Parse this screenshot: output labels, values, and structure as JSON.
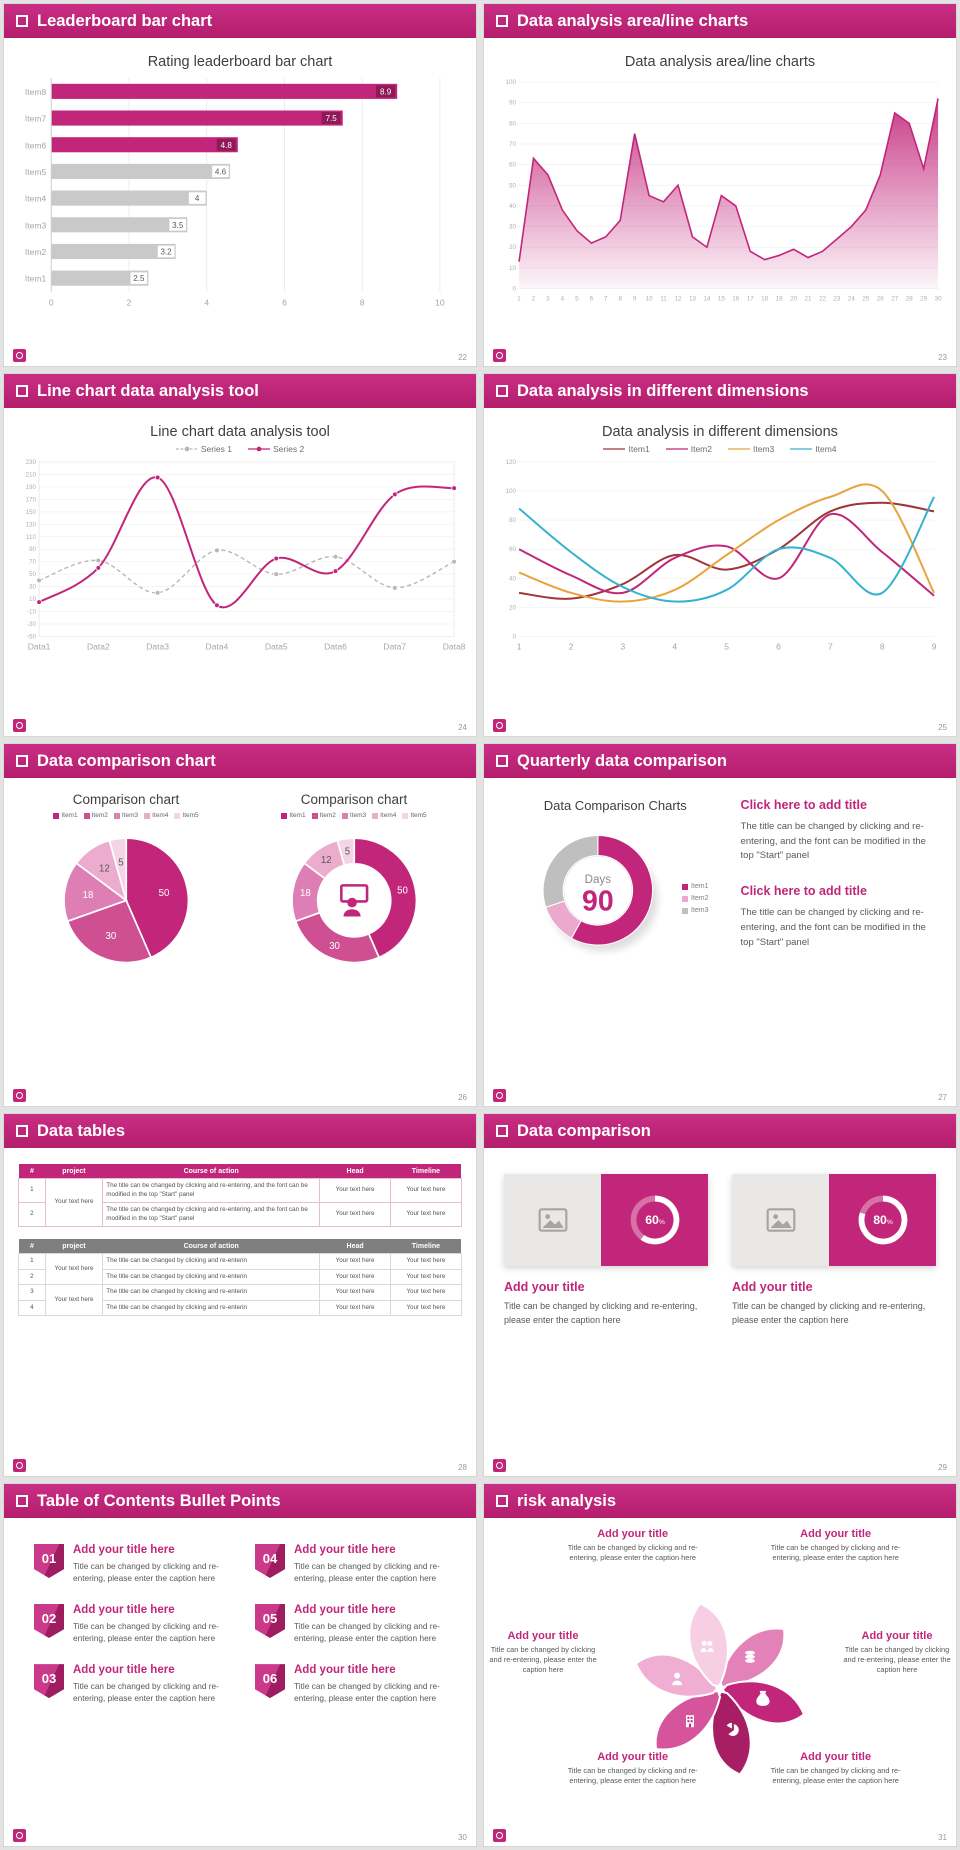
{
  "theme": {
    "accent": "#c2267a",
    "accent_dark": "#8f1a58",
    "gray_bar": "#c9c9c9"
  },
  "slides": [
    {
      "id": "leaderboard",
      "title": "Leaderboard bar chart",
      "page": "22",
      "type": "barh",
      "chart": {
        "type": "bar",
        "title": "Rating leaderboard bar chart",
        "categories": [
          "Item1",
          "Item2",
          "Item3",
          "Item4",
          "Item5",
          "Item6",
          "Item7",
          "Item8"
        ],
        "values": [
          2.5,
          3.2,
          3.5,
          4,
          4.6,
          4.8,
          7.5,
          8.9
        ],
        "highlight_from": 5,
        "xticks": [
          0,
          2,
          4,
          6,
          8,
          10
        ],
        "xlim": [
          0,
          10
        ]
      }
    },
    {
      "id": "arealine",
      "title": "Data analysis area/line charts",
      "page": "23",
      "type": "area",
      "chart": {
        "type": "area",
        "title": "Data analysis area/line charts",
        "x_labels": [
          "1",
          "2",
          "3",
          "4",
          "5",
          "6",
          "7",
          "8",
          "9",
          "10",
          "11",
          "12",
          "13",
          "14",
          "15",
          "16",
          "17",
          "18",
          "19",
          "20",
          "21",
          "22",
          "23",
          "24",
          "25",
          "26",
          "27",
          "28",
          "29",
          "30"
        ],
        "values": [
          13,
          63,
          55,
          38,
          28,
          22,
          25,
          33,
          75,
          45,
          42,
          50,
          25,
          20,
          45,
          40,
          18,
          14,
          16,
          19,
          15,
          18,
          24,
          30,
          38,
          55,
          85,
          80,
          58,
          92
        ],
        "yticks": [
          0,
          10,
          20,
          30,
          40,
          50,
          60,
          70,
          80,
          90,
          100
        ],
        "ylim": [
          0,
          100
        ]
      }
    },
    {
      "id": "linetool",
      "title": "Line chart data analysis tool",
      "page": "24",
      "type": "line",
      "chart": {
        "type": "line",
        "title": "Line chart data analysis tool",
        "x_labels": [
          "Data1",
          "Data2",
          "Data3",
          "Data4",
          "Data5",
          "Data6",
          "Data7",
          "Data8"
        ],
        "yticks": [
          230,
          210,
          190,
          170,
          150,
          130,
          110,
          90,
          70,
          50,
          30,
          10,
          -10,
          -30,
          -50
        ],
        "ylim": [
          -50,
          230
        ],
        "markers": true,
        "legend_dot": true,
        "frame": true,
        "series": [
          {
            "name": "Series 1",
            "color": "#b7b7b7",
            "dash": true,
            "values": [
              40,
              72,
              20,
              88,
              50,
              78,
              28,
              70
            ]
          },
          {
            "name": "Series 2",
            "color": "#c2267a",
            "dash": false,
            "values": [
              5,
              60,
              205,
              0,
              75,
              55,
              178,
              188
            ]
          }
        ]
      }
    },
    {
      "id": "dimensions",
      "title": "Data analysis in different dimensions",
      "page": "25",
      "type": "line",
      "chart": {
        "type": "line",
        "title": "Data analysis in different dimensions",
        "x_labels": [
          "1",
          "2",
          "3",
          "4",
          "5",
          "6",
          "7",
          "8",
          "9"
        ],
        "yticks": [
          0,
          20,
          40,
          60,
          80,
          100,
          120
        ],
        "ylim": [
          0,
          120
        ],
        "markers": false,
        "legend_dot": false,
        "frame": false,
        "series": [
          {
            "name": "Item1",
            "color": "#a0353a",
            "dash": false,
            "values": [
              30,
              26,
              36,
              56,
              46,
              60,
              86,
              92,
              86
            ]
          },
          {
            "name": "Item2",
            "color": "#c2267a",
            "dash": false,
            "values": [
              60,
              42,
              30,
              54,
              62,
              40,
              84,
              58,
              28
            ]
          },
          {
            "name": "Item3",
            "color": "#e8a33d",
            "dash": false,
            "values": [
              44,
              30,
              24,
              32,
              56,
              80,
              96,
              100,
              30
            ]
          },
          {
            "name": "Item4",
            "color": "#35b3ce",
            "dash": false,
            "values": [
              88,
              58,
              34,
              24,
              32,
              60,
              54,
              30,
              96
            ]
          }
        ]
      }
    },
    {
      "id": "comparison-pies",
      "title": "Data comparison chart",
      "page": "26",
      "type": "pies",
      "panels": [
        {
          "title": "Comparison chart",
          "style": "pie",
          "legend": [
            "Item1",
            "Item2",
            "Item3",
            "Item4",
            "Item5"
          ],
          "values": [
            50,
            30,
            18,
            12,
            5
          ],
          "colors": [
            "#c2267a",
            "#ce4f92",
            "#dd7fb4",
            "#ecacce",
            "#f6d4e7"
          ]
        },
        {
          "title": "Comparison chart",
          "style": "donut",
          "legend": [
            "Item1",
            "Item2",
            "Item3",
            "Item4",
            "Item5"
          ],
          "values": [
            50,
            30,
            18,
            12,
            5
          ],
          "colors": [
            "#c2267a",
            "#ce4f92",
            "#dd7fb4",
            "#ecacce",
            "#f6d4e7"
          ]
        }
      ]
    },
    {
      "id": "quarterly",
      "title": "Quarterly data comparison",
      "page": "27",
      "type": "gauge6",
      "left": {
        "title": "Data Comparison Charts",
        "center_label": "Days",
        "center_value": "90",
        "segments": [
          58,
          12,
          30
        ],
        "segment_colors": [
          "#c2267a",
          "#eba9cd",
          "#bfbfbf"
        ],
        "legend": [
          {
            "label": "Item1",
            "color": "#c2267a"
          },
          {
            "label": "Item2",
            "color": "#eba9cd"
          },
          {
            "label": "Item3",
            "color": "#bfbfbf"
          }
        ]
      },
      "blocks": [
        {
          "heading": "Click here to add title",
          "body": "The title can be changed by clicking and re-entering, and the font can be modified in the top \"Start\" panel"
        },
        {
          "heading": "Click here to add title",
          "body": "The title can be changed by clicking and re-entering, and the font can be modified in the top \"Start\" panel"
        }
      ]
    },
    {
      "id": "tables",
      "title": "Data tables",
      "page": "28",
      "type": "tables",
      "tables": [
        {
          "style": "pink",
          "columns": [
            "#",
            "project",
            "Course of action",
            "Head",
            "Timeline"
          ],
          "rows": [
            [
              "1",
              "Your text here",
              "The title can be changed by clicking and re-entering, and the font can be modified in the top \"Start\" panel",
              "Your text here",
              "Your text here"
            ],
            [
              "2",
              null,
              "The title can be changed by clicking and re-entering, and the font can be modified in the top \"Start\" panel",
              "Your text here",
              "Your text here"
            ]
          ]
        },
        {
          "style": "gray",
          "columns": [
            "#",
            "project",
            "Course of action",
            "Head",
            "Timeline"
          ],
          "rows": [
            [
              "1",
              "Your text here",
              "The title can be changed by clicking and re-enterin",
              "Your text here",
              "Your text here"
            ],
            [
              "2",
              null,
              "The title can be changed by clicking and re-enterin",
              "Your text here",
              "Your text here"
            ],
            [
              "3",
              "Your text here",
              "The title can be changed by clicking and re-enterin",
              "Your text here",
              "Your text here"
            ],
            [
              "4",
              null,
              "The title can be changed by clicking and re-enterin",
              "Your text here",
              "Your text here"
            ]
          ]
        }
      ]
    },
    {
      "id": "comparison-cards",
      "title": "Data comparison",
      "page": "29",
      "type": "cards",
      "cards": [
        {
          "percent": 60,
          "suffix": "%",
          "heading": "Add your title",
          "caption": "Title can be changed by clicking and re-entering, please enter the caption here"
        },
        {
          "percent": 80,
          "suffix": "%",
          "heading": "Add your title",
          "caption": "Title can be changed by clicking and re-entering, please enter the caption here"
        }
      ]
    },
    {
      "id": "toc",
      "title": "Table of Contents Bullet Points",
      "page": "30",
      "type": "toc",
      "items": [
        {
          "num": "01",
          "heading": "Add your title here",
          "caption": "Title can be changed by clicking and re-entering, please enter the caption here"
        },
        {
          "num": "02",
          "heading": "Add your title here",
          "caption": "Title can be changed by clicking and re-entering, please enter the caption here"
        },
        {
          "num": "03",
          "heading": "Add your title here",
          "caption": "Title can be changed by clicking and re-entering, please enter the caption here"
        },
        {
          "num": "04",
          "heading": "Add your title here",
          "caption": "Title can be changed by clicking and re-entering, please enter the caption here"
        },
        {
          "num": "05",
          "heading": "Add your title here",
          "caption": "Title can be changed by clicking and re-entering, please enter the caption here"
        },
        {
          "num": "06",
          "heading": "Add your title here",
          "caption": "Title can be changed by clicking and re-entering, please enter the caption here"
        }
      ]
    },
    {
      "id": "risk",
      "title": "risk analysis",
      "page": "31",
      "type": "risk",
      "petal_colors": [
        "#e382b8",
        "#c2267a",
        "#a81e65",
        "#d5549b",
        "#f0aed3",
        "#f7cfe5"
      ],
      "icons": [
        "coins",
        "money-bag",
        "pie-chart",
        "building",
        "user",
        "users"
      ],
      "items": [
        {
          "heading": "Add your title",
          "caption": "Title can be changed by clicking and re-entering, please enter the caption here"
        },
        {
          "heading": "Add your title",
          "caption": "Title can be changed by clicking and re-entering, please enter the caption here"
        },
        {
          "heading": "Add your title",
          "caption": "Title can be changed by clicking and re-entering, please enter the caption here"
        },
        {
          "heading": "Add your title",
          "caption": "Title can be changed by clicking and re-entering, please enter the caption here"
        },
        {
          "heading": "Add your title",
          "caption": "Title can be changed by clicking and re-entering, please enter the caption here"
        },
        {
          "heading": "Add your title",
          "caption": "Title can be changed by clicking and re-entering, please enter the caption here"
        }
      ]
    }
  ]
}
